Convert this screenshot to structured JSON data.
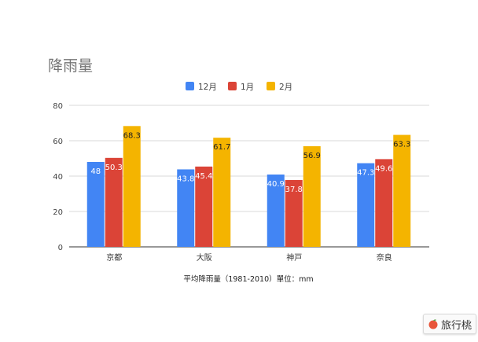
{
  "chart_data": {
    "type": "bar",
    "title": "降雨量",
    "categories": [
      "京都",
      "大阪",
      "神戸",
      "奈良"
    ],
    "series": [
      {
        "name": "12月",
        "color": "#4285f4",
        "values": [
          48,
          43.8,
          40.9,
          47.3
        ],
        "labels": [
          "48",
          "43.8",
          "40.9",
          "47.3"
        ]
      },
      {
        "name": "1月",
        "color": "#db4437",
        "values": [
          50.3,
          45.4,
          37.8,
          49.6
        ],
        "labels": [
          "50.3",
          "45.4",
          "37.8",
          "49.6"
        ]
      },
      {
        "name": "2月",
        "color": "#f4b400",
        "values": [
          68.3,
          61.7,
          56.9,
          63.3
        ],
        "labels": [
          "68.3",
          "61.7",
          "56.9",
          "63.3"
        ]
      }
    ],
    "xlabel": "平均降雨量（1981-2010）單位：mm",
    "ylabel": "",
    "ylim": [
      0,
      80
    ],
    "yticks": [
      0,
      20,
      40,
      60,
      80
    ],
    "grid": true,
    "legend_position": "top"
  },
  "watermark": {
    "text": "旅行桃",
    "icon": "peach-icon"
  }
}
